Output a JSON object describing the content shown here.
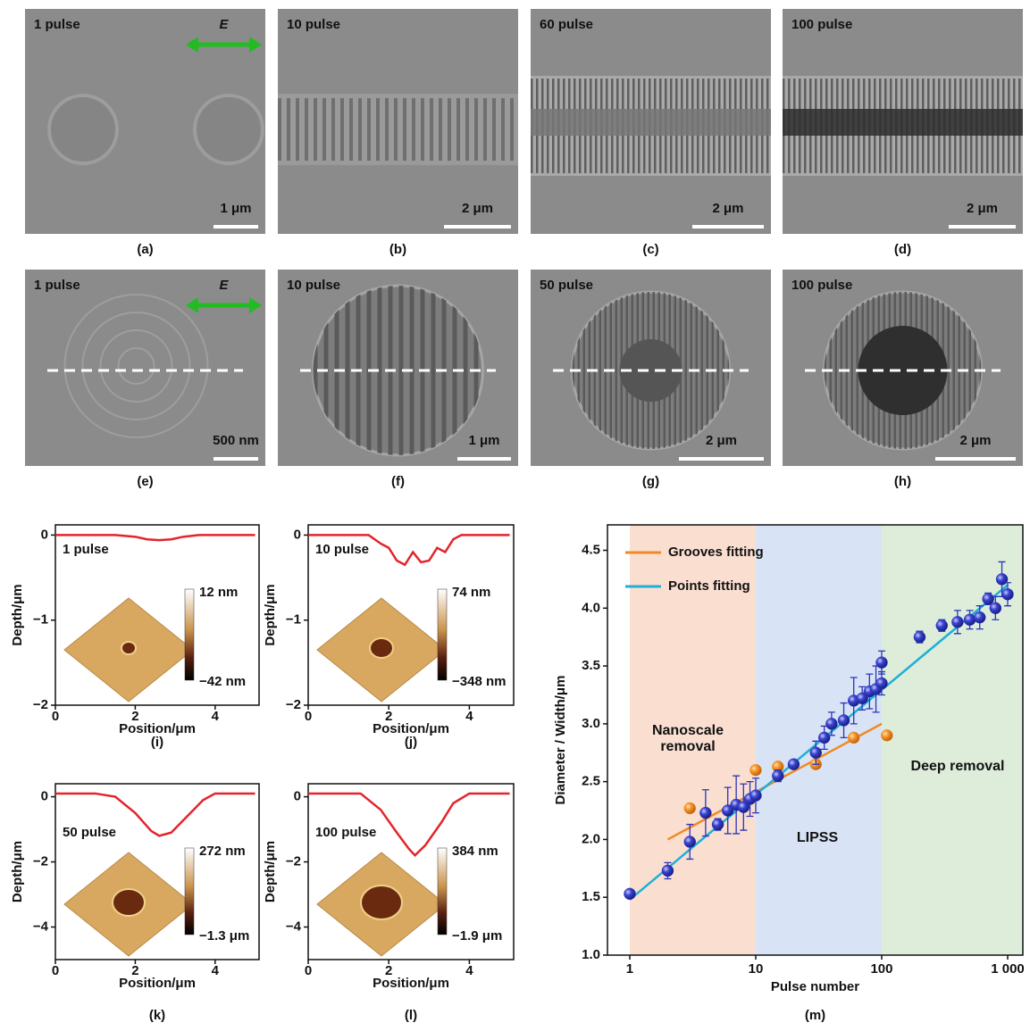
{
  "panels": [
    {
      "label": "1 pulse",
      "field_label": "E",
      "scale": "1 μm",
      "caption": "(a)"
    },
    {
      "label": "10 pulse",
      "scale": "2 μm",
      "caption": "(b)"
    },
    {
      "label": "60 pulse",
      "scale": "2 μm",
      "caption": "(c)"
    },
    {
      "label": "100 pulse",
      "scale": "2 μm",
      "caption": "(d)"
    },
    {
      "label": "1 pulse",
      "field_label": "E",
      "scale": "500 nm",
      "caption": "(e)"
    },
    {
      "label": "10 pulse",
      "scale": "1 μm",
      "caption": "(f)"
    },
    {
      "label": "50 pulse",
      "scale": "2 μm",
      "caption": "(g)"
    },
    {
      "label": "100 pulse",
      "scale": "2 μm",
      "caption": "(h)"
    }
  ],
  "chart_data": [
    {
      "type": "line",
      "caption": "(i)",
      "annotation": "1 pulse",
      "colorbar": [
        "12 nm",
        "−42 nm"
      ],
      "xlabel": "Position/μm",
      "ylabel": "Depth/μm",
      "x": [
        0,
        1.5,
        2,
        2.3,
        2.6,
        2.9,
        3.2,
        3.6,
        5
      ],
      "series": [
        {
          "color": "#e3242b",
          "values": [
            0,
            0,
            -0.02,
            -0.05,
            -0.06,
            -0.05,
            -0.02,
            0,
            0
          ]
        }
      ],
      "xlim": [
        0,
        5.1
      ],
      "ylim": [
        -2,
        0.12
      ],
      "xticks": [
        0,
        2,
        4
      ],
      "yticks": [
        {
          "value": -2,
          "label": "−2"
        },
        {
          "value": -1,
          "label": "−1"
        },
        0
      ]
    },
    {
      "type": "line",
      "caption": "(j)",
      "annotation": "10 pulse",
      "colorbar": [
        "74 nm",
        "−348 nm"
      ],
      "xlabel": "Position/μm",
      "ylabel": "Depth/μm",
      "x": [
        0,
        1.5,
        1.8,
        2.0,
        2.2,
        2.4,
        2.6,
        2.8,
        3.0,
        3.2,
        3.4,
        3.6,
        3.8,
        5
      ],
      "series": [
        {
          "color": "#e3242b",
          "values": [
            0,
            0,
            -0.1,
            -0.15,
            -0.3,
            -0.35,
            -0.2,
            -0.32,
            -0.3,
            -0.15,
            -0.2,
            -0.05,
            0,
            0
          ]
        }
      ],
      "xlim": [
        0,
        5.1
      ],
      "ylim": [
        -2,
        0.12
      ],
      "xticks": [
        0,
        2,
        4
      ],
      "yticks": [
        {
          "value": -2,
          "label": "−2"
        },
        {
          "value": -1,
          "label": "−1"
        },
        0
      ]
    },
    {
      "type": "line",
      "caption": "(k)",
      "annotation": "50 pulse",
      "colorbar": [
        "272 nm",
        "−1.3 μm"
      ],
      "xlabel": "Position/μm",
      "ylabel": "Depth/μm",
      "x": [
        0,
        1.0,
        1.5,
        2.0,
        2.4,
        2.6,
        2.9,
        3.3,
        3.7,
        4.0,
        5
      ],
      "series": [
        {
          "color": "#e3242b",
          "values": [
            0.1,
            0.1,
            0,
            -0.5,
            -1.05,
            -1.2,
            -1.1,
            -0.6,
            -0.1,
            0.1,
            0.1
          ]
        }
      ],
      "xlim": [
        0,
        5.1
      ],
      "ylim": [
        -5,
        0.4
      ],
      "xticks": [
        0,
        2,
        4
      ],
      "yticks": [
        {
          "value": -4,
          "label": "−4"
        },
        {
          "value": -2,
          "label": "−2"
        },
        0
      ]
    },
    {
      "type": "line",
      "caption": "(l)",
      "annotation": "100 pulse",
      "colorbar": [
        "384 nm",
        "−1.9 μm"
      ],
      "xlabel": "Position/μm",
      "ylabel": "Depth/μm",
      "x": [
        0,
        1.3,
        1.8,
        2.2,
        2.5,
        2.65,
        2.9,
        3.3,
        3.6,
        4.0,
        5
      ],
      "series": [
        {
          "color": "#e3242b",
          "values": [
            0.1,
            0.1,
            -0.4,
            -1.1,
            -1.6,
            -1.8,
            -1.5,
            -0.8,
            -0.2,
            0.1,
            0.1
          ]
        }
      ],
      "xlim": [
        0,
        5.1
      ],
      "ylim": [
        -5,
        0.4
      ],
      "xticks": [
        0,
        2,
        4
      ],
      "yticks": [
        {
          "value": -4,
          "label": "−4"
        },
        {
          "value": -2,
          "label": "−2"
        },
        0
      ]
    },
    {
      "type": "scatter",
      "caption": "(m)",
      "log_x": true,
      "xlabel": "Pulse number",
      "ylabel": "Diameter / Width/μm",
      "xlim": [
        0.665,
        1320
      ],
      "ylim": [
        1.0,
        4.72
      ],
      "xticks": [
        1,
        10,
        100,
        {
          "value": 1000,
          "label": "1 000"
        }
      ],
      "yticks": [
        {
          "value": 1.0,
          "label": "1.0"
        },
        {
          "value": 1.5,
          "label": "1.5"
        },
        {
          "value": 2.0,
          "label": "2.0"
        },
        {
          "value": 2.5,
          "label": "2.5"
        },
        {
          "value": 3.0,
          "label": "3.0"
        },
        {
          "value": 3.5,
          "label": "3.5"
        },
        {
          "value": 4.0,
          "label": "4.0"
        },
        {
          "value": 4.5,
          "label": "4.5"
        }
      ],
      "regions": [
        {
          "label": "Nanoscale removal",
          "from": 1,
          "to": 10,
          "color": "#f4b89a"
        },
        {
          "label": "LIPSS",
          "from": 10,
          "to": 100,
          "color": "#a9c3ea"
        },
        {
          "label": "Deep removal",
          "from": 100,
          "to": 1320,
          "color": "#b4d6ad"
        }
      ],
      "series": [
        {
          "name": "Grooves fitting",
          "color": "#f08a24",
          "x": [
            2,
            100
          ],
          "values": [
            2.0,
            3.0
          ]
        },
        {
          "name": "Points fitting",
          "color": "#1fb0d6",
          "x": [
            1,
            1000
          ],
          "values": [
            1.48,
            4.2
          ]
        }
      ],
      "points": [
        {
          "color": "#f08a24",
          "x": [
            3,
            10,
            15,
            30,
            60,
            110
          ],
          "values": [
            2.27,
            2.6,
            2.63,
            2.65,
            2.88,
            2.9
          ]
        },
        {
          "color": "#2a34b8",
          "x": [
            1,
            2,
            3,
            4,
            5,
            6,
            7,
            8,
            9,
            10,
            15,
            20,
            30,
            35,
            40,
            50,
            60,
            70,
            80,
            90,
            100,
            100,
            200,
            300,
            400,
            500,
            600,
            700,
            800,
            900,
            1000
          ],
          "values": [
            1.53,
            1.73,
            1.98,
            2.23,
            2.13,
            2.25,
            2.3,
            2.28,
            2.35,
            2.38,
            2.55,
            2.65,
            2.75,
            2.88,
            3.0,
            3.03,
            3.2,
            3.22,
            3.28,
            3.3,
            3.35,
            3.53,
            3.75,
            3.85,
            3.88,
            3.9,
            3.92,
            4.08,
            4.0,
            4.25,
            4.12
          ],
          "errors": [
            0,
            0.07,
            0.15,
            0.2,
            0.05,
            0.2,
            0.25,
            0.2,
            0.15,
            0.15,
            0.05,
            0.03,
            0.1,
            0.1,
            0.1,
            0.15,
            0.2,
            0.1,
            0.15,
            0.2,
            0.1,
            0.1,
            0.05,
            0.05,
            0.1,
            0.08,
            0.1,
            0.05,
            0.1,
            0.15,
            0.1
          ]
        }
      ]
    }
  ]
}
